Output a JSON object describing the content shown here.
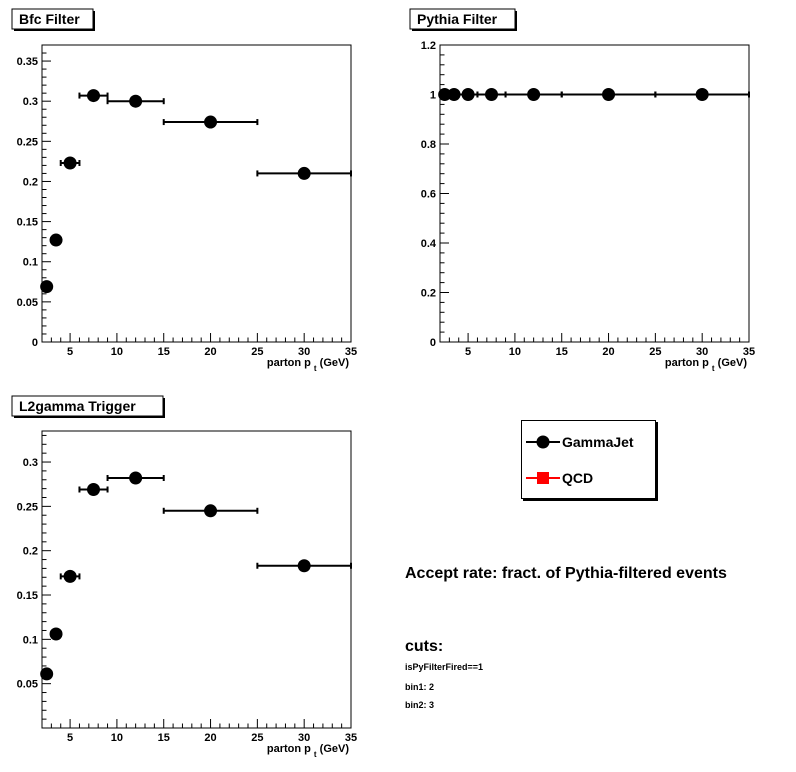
{
  "chart_data": [
    {
      "type": "scatter",
      "title": "Bfc Filter",
      "xlabel": "parton p",
      "xlabel_sub": "t",
      "xlabel_unit": "(GeV)",
      "xlim": [
        2,
        35
      ],
      "ylim": [
        0,
        0.37
      ],
      "xticks": [
        5,
        10,
        15,
        20,
        25,
        30,
        35
      ],
      "yticks": [
        0,
        0.05,
        0.1,
        0.15,
        0.2,
        0.25,
        0.3,
        0.35
      ],
      "yticklabels": [
        "0",
        "0.05",
        "0.1",
        "0.15",
        "0.2",
        "0.25",
        "0.3",
        "0.35"
      ],
      "series": [
        {
          "name": "GammaJet",
          "x": [
            2.5,
            3.5,
            5,
            7.5,
            12,
            20,
            30
          ],
          "xerr_low": [
            0.5,
            0.5,
            1,
            1.5,
            3,
            5,
            5
          ],
          "xerr_high": [
            0.5,
            0.5,
            1,
            1.5,
            3,
            5,
            5
          ],
          "y": [
            0.069,
            0.127,
            0.223,
            0.307,
            0.3,
            0.274,
            0.21
          ]
        }
      ]
    },
    {
      "type": "scatter",
      "title": "Pythia Filter",
      "xlabel": "parton p",
      "xlabel_sub": "t",
      "xlabel_unit": "(GeV)",
      "xlim": [
        2,
        35
      ],
      "ylim": [
        0,
        1.2
      ],
      "xticks": [
        5,
        10,
        15,
        20,
        25,
        30,
        35
      ],
      "yticks": [
        0,
        0.2,
        0.4,
        0.6,
        0.8,
        1,
        1.2
      ],
      "yticklabels": [
        "0",
        "0.2",
        "0.4",
        "0.6",
        "0.8",
        "1",
        "1.2"
      ],
      "series": [
        {
          "name": "GammaJet",
          "x": [
            2.5,
            3.5,
            5,
            7.5,
            12,
            20,
            30
          ],
          "xerr_low": [
            0.5,
            0.5,
            1,
            1.5,
            3,
            5,
            5
          ],
          "xerr_high": [
            0.5,
            0.5,
            1,
            1.5,
            3,
            5,
            5
          ],
          "y": [
            1,
            1,
            1,
            1,
            1,
            1,
            1
          ]
        }
      ]
    },
    {
      "type": "scatter",
      "title": "L2gamma Trigger",
      "xlabel": "parton p",
      "xlabel_sub": "t",
      "xlabel_unit": "(GeV)",
      "xlim": [
        2,
        35
      ],
      "ylim": [
        0,
        0.335
      ],
      "xticks": [
        5,
        10,
        15,
        20,
        25,
        30,
        35
      ],
      "yticks": [
        0.05,
        0.1,
        0.15,
        0.2,
        0.25,
        0.3
      ],
      "yticklabels": [
        "0.05",
        "0.1",
        "0.15",
        "0.2",
        "0.25",
        "0.3"
      ],
      "series": [
        {
          "name": "GammaJet",
          "x": [
            2.5,
            3.5,
            5,
            7.5,
            12,
            20,
            30
          ],
          "xerr_low": [
            0.5,
            0.5,
            1,
            1.5,
            3,
            5,
            5
          ],
          "xerr_high": [
            0.5,
            0.5,
            1,
            1.5,
            3,
            5,
            5
          ],
          "y": [
            0.061,
            0.106,
            0.171,
            0.269,
            0.282,
            0.245,
            0.183
          ]
        }
      ]
    }
  ],
  "legend": {
    "entries": [
      {
        "label": "GammaJet",
        "marker": "circle",
        "color": "#000000"
      },
      {
        "label": "QCD",
        "marker": "square",
        "color": "#ff0000"
      }
    ]
  },
  "notes": {
    "accept_rate": "Accept rate: fract. of Pythia-filtered events",
    "cuts_title": "cuts:",
    "cut_lines": [
      "isPyFilterFired==1",
      "bin1: 2",
      "bin2: 3"
    ]
  }
}
